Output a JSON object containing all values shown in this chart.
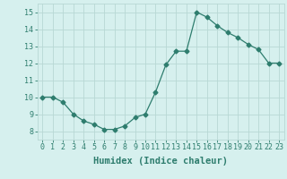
{
  "x": [
    0,
    1,
    2,
    3,
    4,
    5,
    6,
    7,
    8,
    9,
    10,
    11,
    12,
    13,
    14,
    15,
    16,
    17,
    18,
    19,
    20,
    21,
    22,
    23
  ],
  "y": [
    10.0,
    10.0,
    9.7,
    9.0,
    8.6,
    8.4,
    8.1,
    8.1,
    8.3,
    8.8,
    9.0,
    10.3,
    11.9,
    12.7,
    12.7,
    15.0,
    14.7,
    14.2,
    13.8,
    13.5,
    13.1,
    12.8,
    12.0,
    12.0
  ],
  "line_color": "#2e7d6e",
  "marker": "D",
  "marker_size": 2.5,
  "bg_color": "#d6f0ee",
  "grid_color": "#b8d8d4",
  "xlabel": "Humidex (Indice chaleur)",
  "ylim": [
    7.5,
    15.5
  ],
  "xlim": [
    -0.5,
    23.5
  ],
  "yticks": [
    8,
    9,
    10,
    11,
    12,
    13,
    14,
    15
  ],
  "xticks": [
    0,
    1,
    2,
    3,
    4,
    5,
    6,
    7,
    8,
    9,
    10,
    11,
    12,
    13,
    14,
    15,
    16,
    17,
    18,
    19,
    20,
    21,
    22,
    23
  ],
  "tick_fontsize": 6,
  "xlabel_fontsize": 7.5
}
